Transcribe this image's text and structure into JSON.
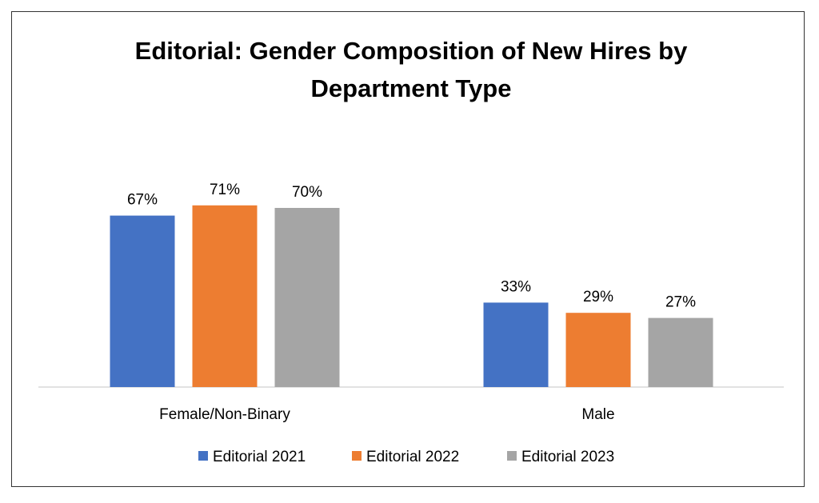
{
  "chart_data": {
    "type": "bar",
    "title_lines": [
      "Editorial: Gender Composition of New Hires by",
      "Department Type"
    ],
    "categories": [
      "Female/Non-Binary",
      "Male"
    ],
    "series": [
      {
        "name": "Editorial 2021",
        "values": [
          67,
          33
        ],
        "color": "#4472C4"
      },
      {
        "name": "Editorial 2022",
        "values": [
          71,
          29
        ],
        "color": "#ED7D31"
      },
      {
        "name": "Editorial 2023",
        "values": [
          70,
          27
        ],
        "color": "#A5A5A5"
      }
    ],
    "value_suffix": "%",
    "ylim": [
      0,
      100
    ],
    "grid": false,
    "legend_position": "bottom",
    "axis_line_color": "#D9D9D9"
  }
}
